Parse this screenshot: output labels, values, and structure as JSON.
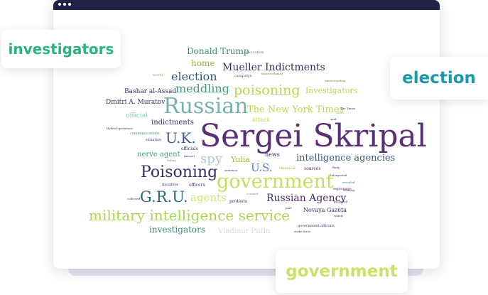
{
  "tags": {
    "investigators": {
      "text": "investigators",
      "color": "#2bb47d"
    },
    "election": {
      "text": "election",
      "color": "#1a9aa8"
    },
    "government": {
      "text": "government",
      "color": "#cfe06a"
    }
  },
  "cloud_words": [
    "Donald Trump",
    "association",
    "home",
    "Mueller Indictments",
    "election",
    "campaign",
    "selected board",
    "world",
    "meddling",
    "poisoning",
    "Investigators",
    "understanding",
    "Bashar al-Assad",
    "Dmitri A. Muratov",
    "Russian",
    "The New York Times",
    "The Times",
    "Times",
    "official",
    "indictments",
    "attack",
    "said",
    "U.K.",
    "Sergei Skripal",
    "Hybrid operations",
    "communications",
    "situation",
    "officials",
    "nerve agent",
    "intelligence agencies",
    "spy",
    "news",
    "turmoil",
    "failing",
    "Yulia",
    "Poisoning",
    "U.S.",
    "sentence",
    "chemical",
    "sources",
    "Body",
    "daughter",
    "officers",
    "government",
    "Interpreted",
    "revealed",
    "G.R.U.",
    "agents",
    "Russian Agency",
    "espionage",
    "scrutiny",
    "counted",
    "collected",
    "protests",
    "protested",
    "military intelligence service",
    "Novaya Gazeta",
    "part",
    "investigators",
    "Vladimir Putin",
    "government officials",
    "strike force",
    "widely"
  ]
}
